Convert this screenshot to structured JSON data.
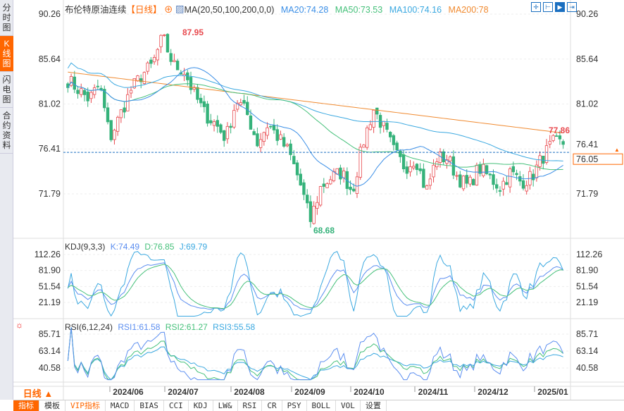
{
  "sidebar": [
    {
      "label": "分时图"
    },
    {
      "label": "K线图"
    },
    {
      "label": "闪电图"
    },
    {
      "label": "合约资料"
    }
  ],
  "legend": {
    "name": "布伦特原油连续",
    "period": "【日线】",
    "ma_title": "MA(20,50,100,200,0,0)",
    "ma20": "MA20:74.28",
    "ma50": "MA50:73.53",
    "ma100": "MA100:74.16",
    "ma200": "MA200:78"
  },
  "kdj": {
    "title": "KDJ(9,3,3)",
    "k": "K:74.49",
    "d": "D:76.85",
    "j": "J:69.79"
  },
  "rsi": {
    "title": "RSI(6,12,24)",
    "r1": "RSI1:61.58",
    "r2": "RSI2:61.27",
    "r3": "RSI3:55.58"
  },
  "period_label": "日线 ▲",
  "tabs": [
    "指标",
    "模板",
    "VIP指标",
    "MACD",
    "BIAS",
    "CCI",
    "KDJ",
    "LW&",
    "RSI",
    "CR",
    "PSY",
    "BOLL",
    "VOL",
    "设置"
  ],
  "colors": {
    "up": "#e84a4f",
    "down": "#35b27a",
    "ma20": "#3a8ee6",
    "ma50": "#45c07a",
    "ma100": "#3aa8e0",
    "ma200": "#f08a30",
    "accent": "#ff6600"
  },
  "chart_data": {
    "type": "candlestick",
    "price_axis": [
      "90.26",
      "85.64",
      "81.02",
      "76.41",
      "71.79"
    ],
    "ylim": [
      66.5,
      91
    ],
    "kdj_axis": [
      "112.26",
      "81.90",
      "51.54",
      "21.19"
    ],
    "rsi_axis": [
      "85.71",
      "63.14",
      "40.58"
    ],
    "dates": [
      "2024/06",
      "2024/07",
      "2024/08",
      "2024/09",
      "2024/10",
      "2024/11",
      "2024/12",
      "2025/01"
    ],
    "high_label": "87.95",
    "low_label": "68.68",
    "last_high_label": "77.86",
    "current_price": "76.05",
    "current_value": 76.05,
    "close_path": [
      83.5,
      82.5,
      81.5,
      83,
      77.5,
      80,
      82.5,
      84,
      85,
      87.9,
      85,
      84.5,
      82,
      80,
      79,
      77.5,
      81.5,
      80,
      77,
      79,
      77.5,
      76,
      73,
      69,
      72.5,
      73.5,
      74,
      72,
      77,
      80.5,
      78.5,
      76,
      74.5,
      75.5,
      72,
      75.5,
      75.5,
      73.5,
      72.5,
      74.5,
      73.5,
      72.5,
      74,
      73,
      73.5,
      75.5,
      77,
      77
    ]
  }
}
